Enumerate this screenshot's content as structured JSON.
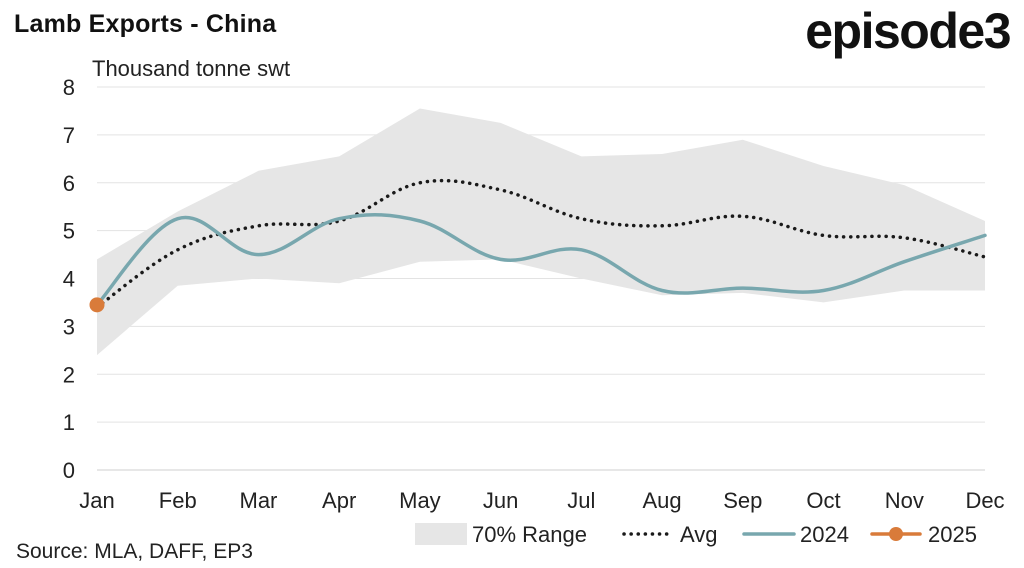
{
  "header": {
    "title": "Lamb Exports - China",
    "logo": "episode3"
  },
  "footer": {
    "source": "Source: MLA, DAFF, EP3"
  },
  "chart_data": {
    "type": "line",
    "title": "Lamb Exports - China",
    "ylabel": "Thousand tonne swt",
    "xlabel": "",
    "categories": [
      "Jan",
      "Feb",
      "Mar",
      "Apr",
      "May",
      "Jun",
      "Jul",
      "Aug",
      "Sep",
      "Oct",
      "Nov",
      "Dec"
    ],
    "ylim": [
      0,
      8
    ],
    "yticks": [
      0,
      1,
      2,
      3,
      4,
      5,
      6,
      7,
      8
    ],
    "grid": true,
    "legend_position": "bottom-right",
    "range": {
      "name": "70% Range",
      "color": "#e6e6e6",
      "low": [
        2.4,
        3.85,
        4.0,
        3.9,
        4.35,
        4.4,
        4.0,
        3.65,
        3.7,
        3.5,
        3.75,
        3.75
      ],
      "high": [
        4.4,
        5.4,
        6.25,
        6.55,
        7.55,
        7.25,
        6.55,
        6.6,
        6.9,
        6.35,
        5.95,
        5.2
      ]
    },
    "series": [
      {
        "name": "Avg",
        "style": "dotted",
        "color": "#1a1a1a",
        "values": [
          3.4,
          4.6,
          5.1,
          5.2,
          6.0,
          5.85,
          5.25,
          5.1,
          5.3,
          4.9,
          4.85,
          4.45
        ]
      },
      {
        "name": "2024",
        "style": "solid",
        "color": "#78a7ae",
        "values": [
          3.45,
          5.25,
          4.5,
          5.25,
          5.2,
          4.4,
          4.6,
          3.75,
          3.8,
          3.75,
          4.35,
          4.9
        ]
      },
      {
        "name": "2025",
        "style": "marker",
        "color": "#d97b3a",
        "values": [
          3.45,
          null,
          null,
          null,
          null,
          null,
          null,
          null,
          null,
          null,
          null,
          null
        ]
      }
    ]
  }
}
